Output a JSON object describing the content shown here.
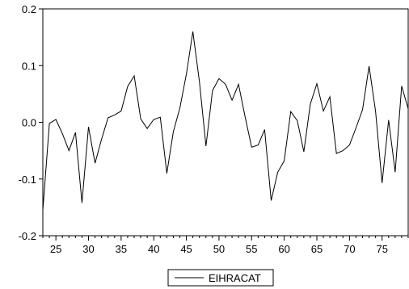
{
  "chart_data": {
    "type": "line",
    "title": "",
    "xlabel": "",
    "ylabel": "",
    "xlim": [
      23,
      79
    ],
    "ylim": [
      -0.2,
      0.2
    ],
    "x_ticks": [
      25,
      30,
      35,
      40,
      45,
      50,
      55,
      60,
      65,
      70,
      75
    ],
    "y_ticks": [
      -0.2,
      -0.1,
      0.0,
      0.1,
      0.2
    ],
    "y_tick_labels": [
      "-0.2",
      "-0.1",
      "0.0",
      "0.1",
      "0.2"
    ],
    "grid": false,
    "legend_position": "bottom-center",
    "series": [
      {
        "name": "EIHRACAT",
        "color": "#000000",
        "x": [
          23,
          24,
          25,
          26,
          27,
          28,
          29,
          30,
          31,
          32,
          33,
          34,
          35,
          36,
          37,
          38,
          39,
          40,
          41,
          42,
          43,
          44,
          45,
          46,
          47,
          48,
          49,
          50,
          51,
          52,
          53,
          54,
          55,
          56,
          57,
          58,
          59,
          60,
          61,
          62,
          63,
          64,
          65,
          66,
          67,
          68,
          69,
          70,
          71,
          72,
          73,
          74,
          75,
          76,
          77,
          78,
          79
        ],
        "values": [
          -0.155,
          -0.002,
          0.005,
          -0.02,
          -0.05,
          -0.018,
          -0.142,
          -0.008,
          -0.072,
          -0.03,
          0.008,
          0.013,
          0.02,
          0.063,
          0.082,
          0.006,
          -0.011,
          0.005,
          0.009,
          -0.09,
          -0.017,
          0.025,
          0.085,
          0.16,
          0.072,
          -0.042,
          0.056,
          0.077,
          0.067,
          0.039,
          0.067,
          0.01,
          -0.044,
          -0.04,
          -0.013,
          -0.138,
          -0.088,
          -0.068,
          0.019,
          0.003,
          -0.052,
          0.032,
          0.068,
          0.02,
          0.045,
          -0.055,
          -0.05,
          -0.04,
          -0.01,
          0.022,
          0.099,
          0.02,
          -0.107,
          0.004,
          -0.088,
          0.064,
          0.024
        ]
      }
    ]
  }
}
